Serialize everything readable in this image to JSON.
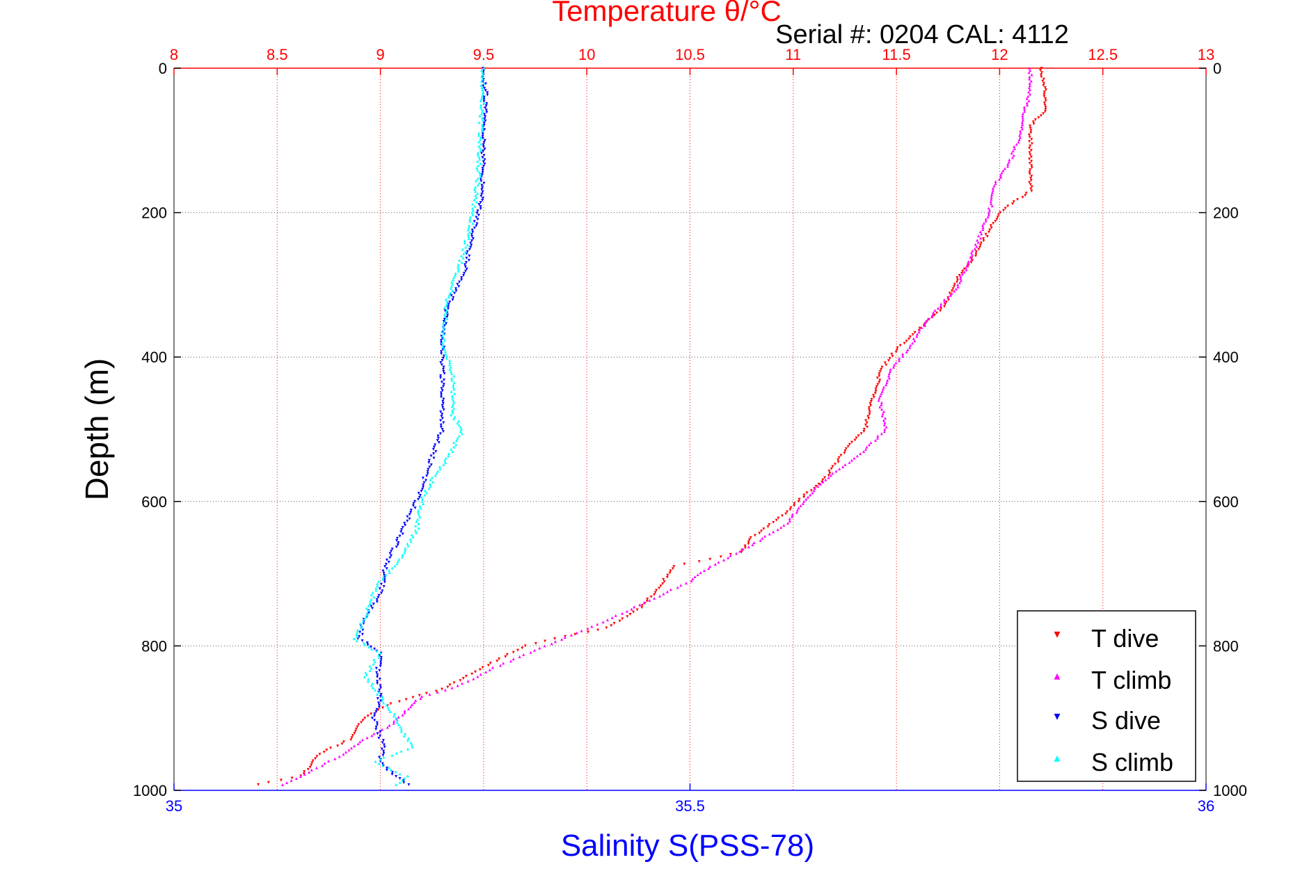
{
  "chart_data": {
    "type": "scatter",
    "title": "Temperature θ/°C",
    "subtitle": "Serial #: 0204  CAL: 4112",
    "ylabel": "Depth (m)",
    "xlabel_bottom": "Salinity S(PSS-78)",
    "top_axis": {
      "label": "Temperature θ/°C",
      "range": [
        8,
        13
      ],
      "ticks": [
        "8",
        "8.5",
        "9",
        "9.5",
        "10",
        "10.5",
        "11",
        "11.5",
        "12",
        "12.5",
        "13"
      ],
      "grid": true
    },
    "bottom_axis": {
      "label": "Salinity S(PSS-78)",
      "range": [
        35,
        36
      ],
      "ticks": [
        "35",
        "35.5",
        "36"
      ]
    },
    "y_axis": {
      "range": [
        0,
        1000
      ],
      "reversed": true,
      "ticks": [
        "0",
        "200",
        "400",
        "600",
        "800",
        "1000"
      ],
      "grid": true
    },
    "legend": {
      "position": "bottom-right",
      "entries": [
        "T dive",
        "T climb",
        "S dive",
        "S climb"
      ]
    },
    "colors": {
      "T dive": "#ff0000",
      "T climb": "#ff00ff",
      "S dive": "#0000ff",
      "S climb": "#00ffff",
      "top_axis": "#ff0000",
      "bottom_axis": "#0000ff"
    },
    "series": [
      {
        "name": "T dive",
        "axis": "temperature",
        "points": [
          [
            12.2,
            0
          ],
          [
            12.22,
            30
          ],
          [
            12.22,
            60
          ],
          [
            12.15,
            80
          ],
          [
            12.15,
            120
          ],
          [
            12.15,
            170
          ],
          [
            12.0,
            200
          ],
          [
            11.88,
            260
          ],
          [
            11.8,
            290
          ],
          [
            11.73,
            330
          ],
          [
            11.62,
            360
          ],
          [
            11.5,
            390
          ],
          [
            11.42,
            420
          ],
          [
            11.4,
            450
          ],
          [
            11.37,
            470
          ],
          [
            11.35,
            500
          ],
          [
            11.25,
            530
          ],
          [
            11.15,
            570
          ],
          [
            11.02,
            600
          ],
          [
            10.95,
            620
          ],
          [
            10.8,
            650
          ],
          [
            10.75,
            670
          ],
          [
            10.6,
            680
          ],
          [
            10.42,
            690
          ],
          [
            10.35,
            720
          ],
          [
            10.25,
            750
          ],
          [
            10.1,
            775
          ],
          [
            9.85,
            790
          ],
          [
            9.7,
            800
          ],
          [
            9.5,
            830
          ],
          [
            9.3,
            860
          ],
          [
            9.05,
            880
          ],
          [
            8.92,
            900
          ],
          [
            8.85,
            930
          ],
          [
            8.7,
            950
          ],
          [
            8.62,
            980
          ],
          [
            8.35,
            995
          ]
        ]
      },
      {
        "name": "T climb",
        "axis": "temperature",
        "points": [
          [
            12.15,
            0
          ],
          [
            12.15,
            30
          ],
          [
            12.12,
            60
          ],
          [
            12.1,
            90
          ],
          [
            12.05,
            130
          ],
          [
            11.98,
            160
          ],
          [
            11.95,
            200
          ],
          [
            11.88,
            250
          ],
          [
            11.8,
            300
          ],
          [
            11.65,
            350
          ],
          [
            11.55,
            390
          ],
          [
            11.47,
            420
          ],
          [
            11.42,
            460
          ],
          [
            11.45,
            500
          ],
          [
            11.3,
            540
          ],
          [
            11.15,
            570
          ],
          [
            11.05,
            600
          ],
          [
            10.97,
            630
          ],
          [
            10.8,
            660
          ],
          [
            10.6,
            690
          ],
          [
            10.5,
            710
          ],
          [
            10.28,
            740
          ],
          [
            10.05,
            770
          ],
          [
            9.8,
            800
          ],
          [
            9.55,
            830
          ],
          [
            9.38,
            855
          ],
          [
            9.2,
            870
          ],
          [
            9.12,
            890
          ],
          [
            9.05,
            910
          ],
          [
            8.92,
            930
          ],
          [
            8.82,
            950
          ],
          [
            8.65,
            975
          ],
          [
            8.5,
            995
          ]
        ]
      },
      {
        "name": "S dive",
        "axis": "salinity",
        "points": [
          [
            35.3,
            0
          ],
          [
            35.302,
            40
          ],
          [
            35.3,
            100
          ],
          [
            35.298,
            180
          ],
          [
            35.29,
            230
          ],
          [
            35.28,
            290
          ],
          [
            35.265,
            330
          ],
          [
            35.26,
            380
          ],
          [
            35.26,
            420
          ],
          [
            35.26,
            470
          ],
          [
            35.26,
            500
          ],
          [
            35.25,
            540
          ],
          [
            35.24,
            580
          ],
          [
            35.235,
            600
          ],
          [
            35.225,
            630
          ],
          [
            35.205,
            690
          ],
          [
            35.2,
            730
          ],
          [
            35.185,
            760
          ],
          [
            35.18,
            790
          ],
          [
            35.2,
            810
          ],
          [
            35.197,
            840
          ],
          [
            35.2,
            870
          ],
          [
            35.194,
            900
          ],
          [
            35.203,
            940
          ],
          [
            35.2,
            960
          ],
          [
            35.21,
            975
          ],
          [
            35.23,
            995
          ]
        ]
      },
      {
        "name": "S climb",
        "axis": "salinity",
        "points": [
          [
            35.3,
            0
          ],
          [
            35.298,
            60
          ],
          [
            35.295,
            150
          ],
          [
            35.29,
            200
          ],
          [
            35.28,
            260
          ],
          [
            35.265,
            320
          ],
          [
            35.26,
            380
          ],
          [
            35.27,
            420
          ],
          [
            35.27,
            460
          ],
          [
            35.27,
            480
          ],
          [
            35.28,
            500
          ],
          [
            35.265,
            540
          ],
          [
            35.25,
            570
          ],
          [
            35.24,
            600
          ],
          [
            35.235,
            640
          ],
          [
            35.218,
            680
          ],
          [
            35.195,
            720
          ],
          [
            35.185,
            760
          ],
          [
            35.175,
            790
          ],
          [
            35.2,
            810
          ],
          [
            35.185,
            840
          ],
          [
            35.2,
            870
          ],
          [
            35.215,
            900
          ],
          [
            35.23,
            940
          ],
          [
            35.195,
            960
          ],
          [
            35.225,
            980
          ],
          [
            35.215,
            995
          ]
        ]
      }
    ]
  }
}
